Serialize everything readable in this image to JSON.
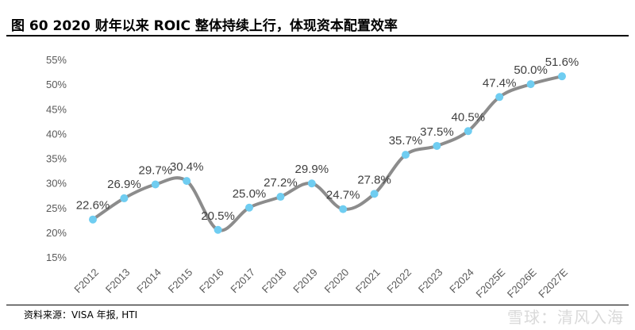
{
  "header": {
    "title": "图 60 2020 财年以来 ROIC 整体持续上行，体现资本配置效率"
  },
  "footer": {
    "source": "资料来源：VISA 年报, HTI"
  },
  "watermark": {
    "text": "雪球：清风入海"
  },
  "colors": {
    "line": "#8c8c8c",
    "marker": "#6fcdf1",
    "text": "#595959"
  },
  "chart_data": {
    "type": "line",
    "title": "",
    "xlabel": "",
    "ylabel": "",
    "categories": [
      "F2012",
      "F2013",
      "F2014",
      "F2015",
      "F2016",
      "F2017",
      "F2018",
      "F2019",
      "F2020",
      "F2021",
      "F2022",
      "F2023",
      "F2024",
      "F2025E",
      "F2026E",
      "F2027E"
    ],
    "series": [
      {
        "values": [
          22.6,
          26.9,
          29.7,
          30.4,
          20.5,
          25.0,
          27.2,
          29.9,
          24.7,
          27.8,
          35.7,
          37.5,
          40.5,
          47.4,
          50.0,
          51.6
        ]
      }
    ],
    "data_labels": [
      "22.6%",
      "26.9%",
      "29.7%",
      "30.4%",
      "20.5%",
      "25.0%",
      "27.2%",
      "29.9%",
      "24.7%",
      "27.8%",
      "35.7%",
      "37.5%",
      "40.5%",
      "47.4%",
      "50.0%",
      "51.6%"
    ],
    "y_ticks": [
      "15%",
      "20%",
      "25%",
      "30%",
      "35%",
      "40%",
      "45%",
      "50%",
      "55%"
    ],
    "y_tick_values": [
      15,
      20,
      25,
      30,
      35,
      40,
      45,
      50,
      55
    ],
    "ylim": [
      15,
      55
    ],
    "grid": false,
    "legend": "none"
  }
}
